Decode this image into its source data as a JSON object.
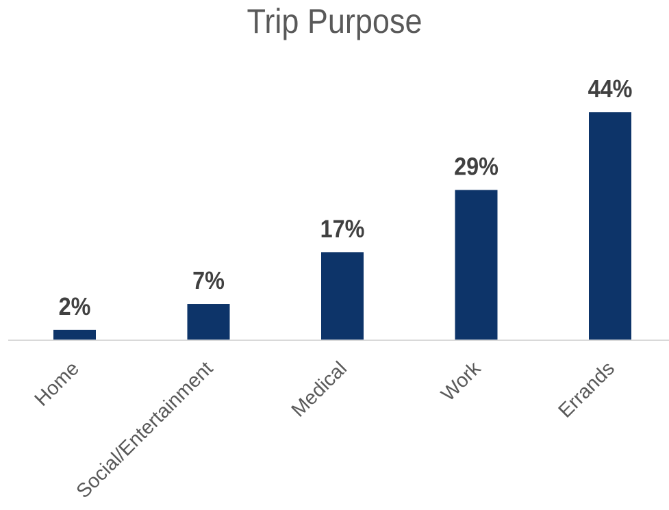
{
  "chart_data": {
    "type": "bar",
    "title": "Trip Purpose",
    "categories": [
      "Home",
      "Social/Entertainment",
      "Medical",
      "Work",
      "Errands"
    ],
    "values": [
      2,
      7,
      17,
      29,
      44
    ],
    "value_labels": [
      "2%",
      "7%",
      "17%",
      "29%",
      "44%"
    ],
    "ylim": [
      0,
      44
    ],
    "grid": false,
    "legend": "none",
    "bar_color": "#0d3469",
    "axis_color": "#d9d9d9"
  }
}
